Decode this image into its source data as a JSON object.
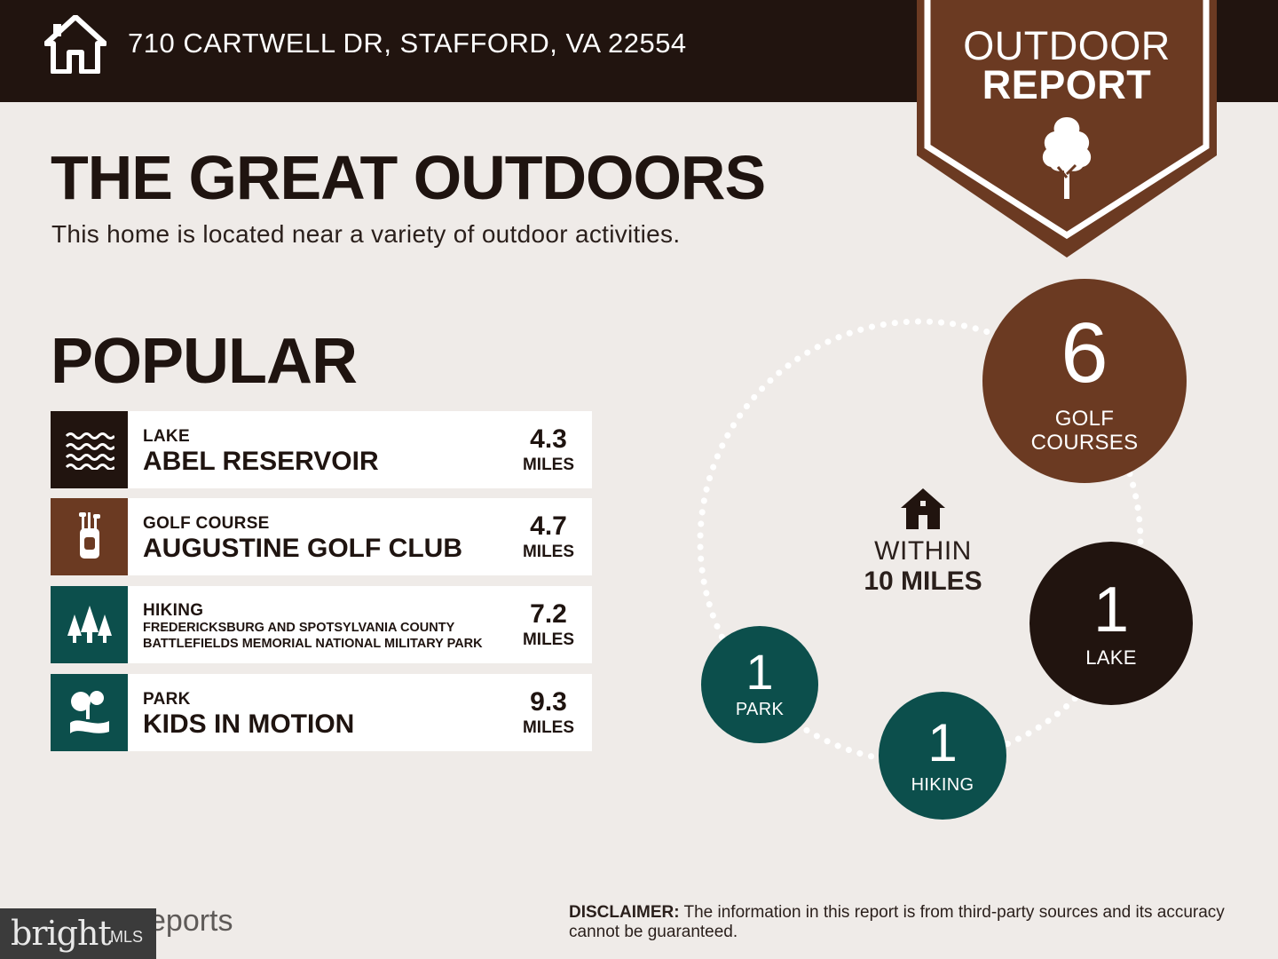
{
  "header": {
    "address": "710 CARTWELL DR, STAFFORD, VA 22554",
    "home_icon": "house-icon"
  },
  "banner": {
    "line1": "OUTDOOR",
    "line2": "REPORT",
    "icon": "tree-icon",
    "color": "#6b3a22"
  },
  "intro": {
    "title": "THE GREAT OUTDOORS",
    "subtitle": "This home is located near a variety of outdoor activities."
  },
  "popular": {
    "heading": "POPULAR",
    "items": [
      {
        "category": "LAKE",
        "name": "ABEL RESERVOIR",
        "distance": "4.3",
        "unit": "MILES",
        "icon": "waves-icon",
        "color": "#21140f"
      },
      {
        "category": "GOLF COURSE",
        "name": "AUGUSTINE GOLF CLUB",
        "distance": "4.7",
        "unit": "MILES",
        "icon": "golf-bag-icon",
        "color": "#6b3a22"
      },
      {
        "category": "HIKING",
        "name_line1": "FREDERICKSBURG AND SPOTSYLVANIA COUNTY",
        "name_line2": "BATTLEFIELDS MEMORIAL NATIONAL MILITARY PARK",
        "distance": "7.2",
        "unit": "MILES",
        "icon": "pine-trees-icon",
        "color": "#0c4f4c"
      },
      {
        "category": "PARK",
        "name": "KIDS IN MOTION",
        "distance": "9.3",
        "unit": "MILES",
        "icon": "park-icon",
        "color": "#0c4f4c"
      }
    ]
  },
  "summary": {
    "center_label1": "WITHIN",
    "center_label2": "10 MILES",
    "bubbles": [
      {
        "count": "6",
        "label1": "GOLF",
        "label2": "COURSES",
        "color": "#6b3a22"
      },
      {
        "count": "1",
        "label": "LAKE",
        "color": "#21140f"
      },
      {
        "count": "1",
        "label": "HIKING",
        "color": "#0c4f4c"
      },
      {
        "count": "1",
        "label": "PARK",
        "color": "#0c4f4c"
      }
    ]
  },
  "footer": {
    "mls_brand": "bright",
    "mls_suffix": "MLS",
    "reports_text": "eports",
    "disclaimer_label": "DISCLAIMER:",
    "disclaimer_text": " The information in this report is from third-party sources and its accuracy cannot be guaranteed."
  }
}
